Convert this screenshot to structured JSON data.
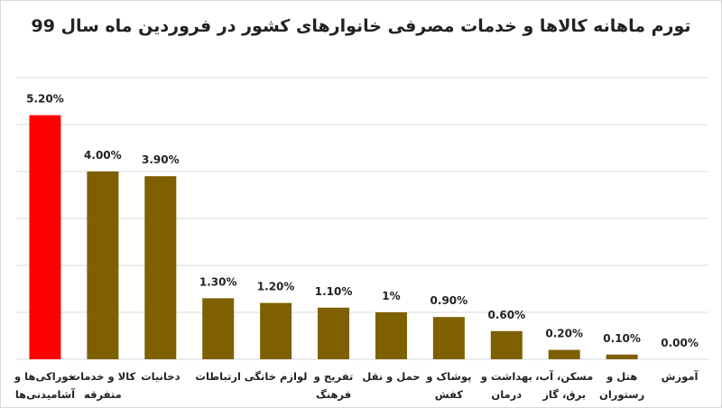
{
  "chart_data": {
    "type": "bar",
    "title": "تورم ماهانه کالاها و خدمات مصرفی خانوارهای کشور در فروردین ماه سال 99",
    "xlabel": "",
    "ylabel": "",
    "ylim": [
      0,
      6
    ],
    "grid": true,
    "legend": "none",
    "categories": [
      [
        "خوراکی‌ها و",
        "آشامیدنی‌ها"
      ],
      [
        "کالا و خدمات",
        "متفرقه"
      ],
      [
        "دخانیات"
      ],
      [
        "ارتباطات"
      ],
      [
        "لوازم خانگی"
      ],
      [
        "تفریح و",
        "فرهنگ"
      ],
      [
        "حمل و نقل"
      ],
      [
        "پوشاک و",
        "کفش"
      ],
      [
        "بهداشت و",
        "درمان"
      ],
      [
        "مسکن، آب،",
        "برق، گاز"
      ],
      [
        "هتل و",
        "رستوران"
      ],
      [
        "آموزش"
      ]
    ],
    "values": [
      5.2,
      4.0,
      3.9,
      1.3,
      1.2,
      1.1,
      1.0,
      0.9,
      0.6,
      0.2,
      0.1,
      0.0
    ],
    "data_labels": [
      "5.20%",
      "4.00%",
      "3.90%",
      "1.30%",
      "1.20%",
      "1.10%",
      "1%",
      "0.90%",
      "0.60%",
      "0.20%",
      "0.10%",
      "0.00%"
    ],
    "colors": [
      "#ff0000",
      "#7f6000",
      "#7f6000",
      "#7f6000",
      "#7f6000",
      "#7f6000",
      "#7f6000",
      "#7f6000",
      "#7f6000",
      "#7f6000",
      "#7f6000",
      "#7f6000"
    ],
    "gridline_color": "#d9d9d9"
  }
}
